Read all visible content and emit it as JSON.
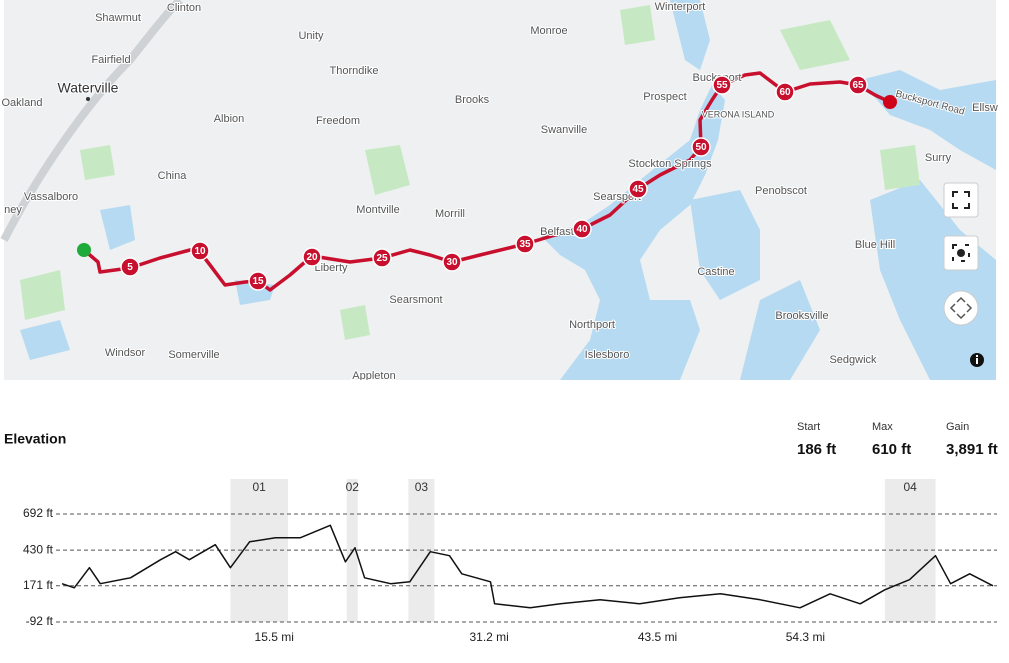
{
  "map": {
    "places": [
      "Shawmut",
      "Clinton",
      "Winterport",
      "Unity",
      "Monroe",
      "Fairfield",
      "Waterville",
      "Thorndike",
      "Oakland",
      "Brooks",
      "Bucksport",
      "Prospect",
      "Albion",
      "Freedom",
      "Swanville",
      "VERONA ISLAND",
      "Ellsw",
      "Bucksport Road",
      "China",
      "Stockton Springs",
      "Surry",
      "Vassalboro",
      "Penobscot",
      "Searsport",
      "Montville",
      "Morrill",
      "Belfast",
      "Blue Hill",
      "ney",
      "Liberty",
      "Castine",
      "Searsmont",
      "Northport",
      "Brooksville",
      "Windsor",
      "Somerville",
      "Islesboro",
      "Sedgwick",
      "Appleton"
    ],
    "markers": [
      5,
      10,
      15,
      20,
      25,
      30,
      35,
      40,
      45,
      50,
      55,
      60,
      65
    ]
  },
  "elevation": {
    "title": "Elevation",
    "stats": [
      {
        "label": "Start",
        "value": "186 ft"
      },
      {
        "label": "Max",
        "value": "610 ft"
      },
      {
        "label": "Gain",
        "value": "3,891 ft"
      }
    ],
    "chart_data": {
      "type": "line",
      "x": [
        0,
        0.9,
        2.0,
        2.8,
        5.0,
        7.2,
        8.3,
        9.3,
        11.2,
        12.3,
        13.7,
        15.6,
        17.4,
        19.6,
        20.7,
        21.4,
        22.1,
        24.0,
        25.4,
        26.9,
        28.3,
        29.2,
        31.3,
        31.6,
        34.2,
        36.4,
        39.3,
        42.2,
        45.1,
        48.1,
        51.0,
        53.9,
        56.1,
        58.3,
        60.1,
        61.9,
        63.8,
        64.9,
        66.3,
        68.0
      ],
      "values": [
        186,
        156,
        302,
        186,
        229,
        360,
        418,
        360,
        469,
        302,
        490,
        519,
        519,
        610,
        345,
        447,
        229,
        186,
        200,
        418,
        389,
        258,
        200,
        40,
        11,
        40,
        69,
        40,
        84,
        113,
        69,
        11,
        113,
        40,
        142,
        215,
        389,
        186,
        258,
        171
      ],
      "color": "#111111",
      "xlim": [
        0,
        68
      ],
      "ylim": [
        -92,
        692
      ],
      "yticks": [
        {
          "value": 692,
          "label": "692 ft"
        },
        {
          "value": 430,
          "label": "430 ft"
        },
        {
          "value": 171,
          "label": "171 ft"
        },
        {
          "value": -92,
          "label": "-92 ft"
        }
      ],
      "xticks": [
        {
          "value": 15.5,
          "label": "15.5 mi"
        },
        {
          "value": 31.2,
          "label": "31.2 mi"
        },
        {
          "value": 43.5,
          "label": "43.5 mi"
        },
        {
          "value": 54.3,
          "label": "54.3 mi"
        }
      ],
      "grid": true,
      "segments": [
        {
          "label": "01",
          "range": [
            12.3,
            16.5
          ]
        },
        {
          "label": "02",
          "range": [
            20.8,
            21.6
          ]
        },
        {
          "label": "03",
          "range": [
            25.3,
            27.2
          ]
        },
        {
          "label": "04",
          "range": [
            60.1,
            63.8
          ]
        }
      ]
    }
  }
}
